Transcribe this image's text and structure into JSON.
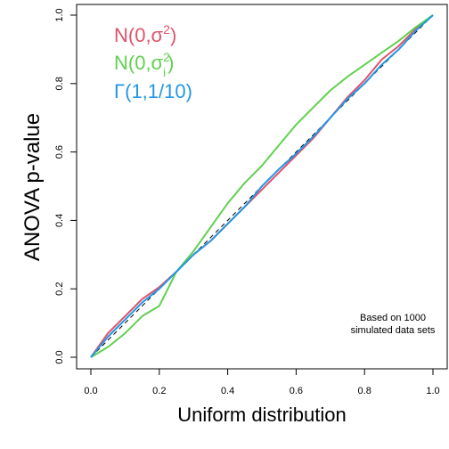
{
  "chart_data": {
    "type": "line",
    "title": "",
    "xlabel": "Uniform distribution",
    "ylabel": "ANOVA p-value",
    "xlim": [
      0,
      1
    ],
    "ylim": [
      0,
      1
    ],
    "xticks": [
      0.0,
      0.2,
      0.4,
      0.6,
      0.8,
      1.0
    ],
    "xtick_labels": [
      "0.0",
      "0.2",
      "0.4",
      "0.6",
      "0.8",
      "1.0"
    ],
    "yticks": [
      0.0,
      0.2,
      0.4,
      0.6,
      0.8,
      1.0
    ],
    "ytick_labels": [
      "0.0",
      "0.2",
      "0.4",
      "0.6",
      "0.8",
      "1.0"
    ],
    "reference_line": {
      "from": [
        0,
        0
      ],
      "to": [
        1,
        1
      ],
      "style": "dashed",
      "color": "#000000"
    },
    "annotation": {
      "lines": [
        "Based on 1000",
        "simulated data sets"
      ],
      "placement": "bottom-right"
    },
    "legend_placement": "top-left",
    "series": [
      {
        "name": "N(0,σ²)",
        "legend_parts": {
          "base": "N(0,σ",
          "sup": "2",
          "close": ")"
        },
        "color": "#DF536B",
        "points": [
          [
            0,
            0
          ],
          [
            0.05,
            0.07
          ],
          [
            0.1,
            0.12
          ],
          [
            0.15,
            0.17
          ],
          [
            0.2,
            0.205
          ],
          [
            0.25,
            0.25
          ],
          [
            0.3,
            0.3
          ],
          [
            0.35,
            0.34
          ],
          [
            0.4,
            0.39
          ],
          [
            0.45,
            0.44
          ],
          [
            0.5,
            0.49
          ],
          [
            0.55,
            0.54
          ],
          [
            0.6,
            0.59
          ],
          [
            0.65,
            0.64
          ],
          [
            0.7,
            0.7
          ],
          [
            0.75,
            0.76
          ],
          [
            0.8,
            0.81
          ],
          [
            0.85,
            0.87
          ],
          [
            0.9,
            0.91
          ],
          [
            0.95,
            0.96
          ],
          [
            1.0,
            1.0
          ]
        ]
      },
      {
        "name": "N(0,σᵢ²)",
        "legend_parts": {
          "base": "N(0,σ",
          "sup": "2",
          "sub": "i",
          "close": ")"
        },
        "color": "#61D04F",
        "points": [
          [
            0,
            0
          ],
          [
            0.05,
            0.03
          ],
          [
            0.1,
            0.07
          ],
          [
            0.15,
            0.12
          ],
          [
            0.2,
            0.15
          ],
          [
            0.25,
            0.25
          ],
          [
            0.3,
            0.31
          ],
          [
            0.35,
            0.38
          ],
          [
            0.4,
            0.45
          ],
          [
            0.45,
            0.51
          ],
          [
            0.5,
            0.56
          ],
          [
            0.55,
            0.62
          ],
          [
            0.6,
            0.68
          ],
          [
            0.65,
            0.73
          ],
          [
            0.7,
            0.78
          ],
          [
            0.75,
            0.82
          ],
          [
            0.8,
            0.855
          ],
          [
            0.85,
            0.89
          ],
          [
            0.9,
            0.925
          ],
          [
            0.95,
            0.965
          ],
          [
            1.0,
            1.0
          ]
        ]
      },
      {
        "name": "Γ(1,1/10)",
        "legend_parts": {
          "base": "Γ(1,1/10)"
        },
        "color": "#2297E6",
        "points": [
          [
            0,
            0
          ],
          [
            0.05,
            0.06
          ],
          [
            0.1,
            0.11
          ],
          [
            0.15,
            0.16
          ],
          [
            0.2,
            0.2
          ],
          [
            0.25,
            0.25
          ],
          [
            0.3,
            0.3
          ],
          [
            0.35,
            0.34
          ],
          [
            0.4,
            0.39
          ],
          [
            0.45,
            0.44
          ],
          [
            0.5,
            0.5
          ],
          [
            0.55,
            0.55
          ],
          [
            0.6,
            0.595
          ],
          [
            0.65,
            0.645
          ],
          [
            0.7,
            0.7
          ],
          [
            0.75,
            0.755
          ],
          [
            0.8,
            0.8
          ],
          [
            0.85,
            0.855
          ],
          [
            0.9,
            0.9
          ],
          [
            0.95,
            0.955
          ],
          [
            1.0,
            1.0
          ]
        ]
      }
    ]
  }
}
